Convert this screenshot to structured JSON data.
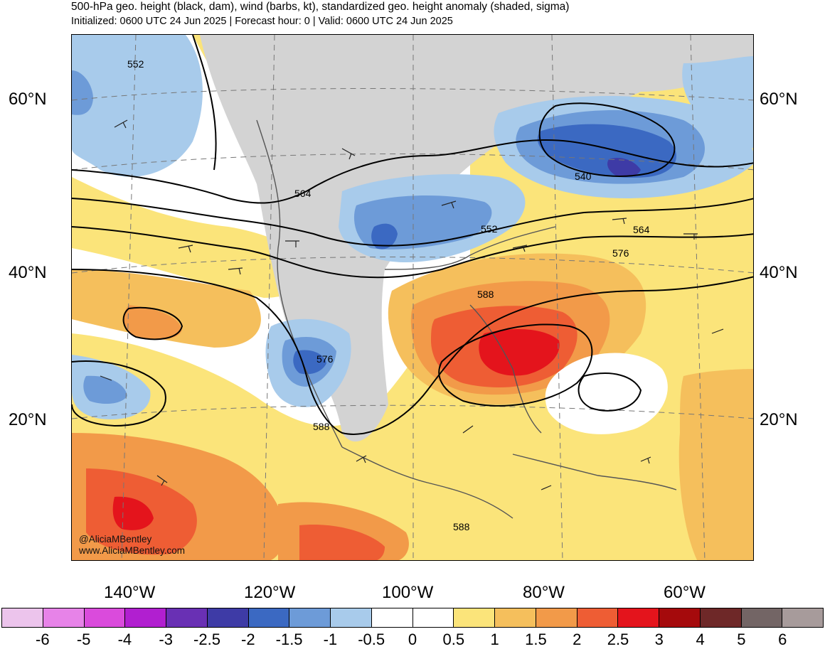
{
  "header": {
    "title": "500-hPa geo. height (black, dam), wind (barbs, kt), standardized geo. height anomaly (shaded, sigma)",
    "subtitle": "Initialized: 0600 UTC 24 Jun 2025 | Forecast hour: 0 | Valid: 0600 UTC 24 Jun 2025"
  },
  "map": {
    "lat_labels": [
      "60°N",
      "40°N",
      "20°N"
    ],
    "lon_labels": [
      "140°W",
      "120°W",
      "100°W",
      "80°W",
      "60°W"
    ],
    "contour_labels": [
      "552",
      "564",
      "552",
      "540",
      "564",
      "576",
      "588",
      "576",
      "588",
      "588"
    ],
    "credit_line1": "@AliciaMBentley",
    "credit_line2": "www.AliciaMBentley.com"
  },
  "colorbar": {
    "labels": [
      "-6",
      "-5",
      "-4",
      "-3",
      "-2.5",
      "-2",
      "-1.5",
      "-1",
      "-0.5",
      "0",
      "0.5",
      "1",
      "1.5",
      "2",
      "2.5",
      "3",
      "4",
      "5",
      "6"
    ],
    "colors": [
      "#ecc4ec",
      "#e783e8",
      "#da4bdc",
      "#b11fd0",
      "#6930b4",
      "#3e3ba6",
      "#3b69c2",
      "#6d9bd8",
      "#a8cbeb",
      "#ffffff",
      "#ffffff",
      "#fbe47a",
      "#f5bf5c",
      "#f29a49",
      "#ee5d34",
      "#e4141c",
      "#a50a0c",
      "#6e2828",
      "#736565",
      "#a79b9b"
    ]
  }
}
